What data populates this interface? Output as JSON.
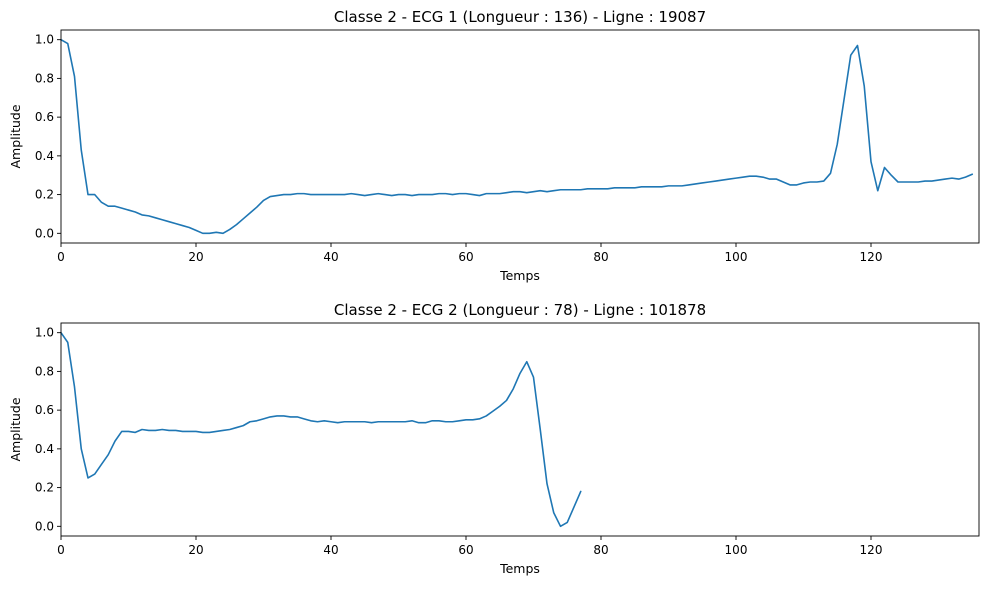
{
  "chart_data": [
    {
      "type": "line",
      "title": "Classe 2 - ECG 1 (Longueur : 136) - Ligne : 19087",
      "xlabel": "Temps",
      "ylabel": "Amplitude",
      "xlim": [
        0,
        136
      ],
      "ylim": [
        -0.05,
        1.05
      ],
      "xticks": [
        0,
        20,
        40,
        60,
        80,
        100,
        120
      ],
      "yticks": [
        0.0,
        0.2,
        0.4,
        0.6,
        0.8,
        1.0
      ],
      "xtick_labels": [
        "0",
        "20",
        "40",
        "60",
        "80",
        "100",
        "120"
      ],
      "ytick_labels": [
        "0.0",
        "0.2",
        "0.4",
        "0.6",
        "0.8",
        "1.0"
      ],
      "grid": false,
      "line_color": "#1f77b4",
      "series": [
        {
          "values": [
            1.0,
            0.98,
            0.81,
            0.43,
            0.2,
            0.2,
            0.16,
            0.14,
            0.14,
            0.13,
            0.12,
            0.11,
            0.095,
            0.09,
            0.08,
            0.07,
            0.06,
            0.05,
            0.04,
            0.03,
            0.015,
            0.0,
            0.0,
            0.005,
            0.0,
            0.02,
            0.045,
            0.075,
            0.105,
            0.135,
            0.17,
            0.19,
            0.195,
            0.2,
            0.2,
            0.205,
            0.205,
            0.2,
            0.2,
            0.2,
            0.2,
            0.2,
            0.2,
            0.205,
            0.2,
            0.195,
            0.2,
            0.205,
            0.2,
            0.195,
            0.2,
            0.2,
            0.195,
            0.2,
            0.2,
            0.2,
            0.205,
            0.205,
            0.2,
            0.205,
            0.205,
            0.2,
            0.195,
            0.205,
            0.205,
            0.205,
            0.21,
            0.215,
            0.215,
            0.21,
            0.215,
            0.22,
            0.215,
            0.22,
            0.225,
            0.225,
            0.225,
            0.225,
            0.23,
            0.23,
            0.23,
            0.23,
            0.235,
            0.235,
            0.235,
            0.235,
            0.24,
            0.24,
            0.24,
            0.24,
            0.245,
            0.245,
            0.245,
            0.25,
            0.255,
            0.26,
            0.265,
            0.27,
            0.275,
            0.28,
            0.285,
            0.29,
            0.295,
            0.295,
            0.29,
            0.28,
            0.28,
            0.265,
            0.25,
            0.25,
            0.26,
            0.265,
            0.265,
            0.27,
            0.31,
            0.46,
            0.69,
            0.92,
            0.97,
            0.76,
            0.37,
            0.22,
            0.34,
            0.3,
            0.265,
            0.265,
            0.265,
            0.265,
            0.27,
            0.27,
            0.275,
            0.28,
            0.285,
            0.28,
            0.29,
            0.305
          ]
        }
      ]
    },
    {
      "type": "line",
      "title": "Classe 2 - ECG 2 (Longueur : 78) - Ligne : 101878",
      "xlabel": "Temps",
      "ylabel": "Amplitude",
      "xlim": [
        0,
        136
      ],
      "ylim": [
        -0.05,
        1.05
      ],
      "xticks": [
        0,
        20,
        40,
        60,
        80,
        100,
        120
      ],
      "yticks": [
        0.0,
        0.2,
        0.4,
        0.6,
        0.8,
        1.0
      ],
      "xtick_labels": [
        "0",
        "20",
        "40",
        "60",
        "80",
        "100",
        "120"
      ],
      "ytick_labels": [
        "0.0",
        "0.2",
        "0.4",
        "0.6",
        "0.8",
        "1.0"
      ],
      "grid": false,
      "line_color": "#1f77b4",
      "series": [
        {
          "values": [
            1.0,
            0.95,
            0.72,
            0.4,
            0.25,
            0.27,
            0.32,
            0.37,
            0.44,
            0.49,
            0.49,
            0.485,
            0.5,
            0.495,
            0.495,
            0.5,
            0.495,
            0.495,
            0.49,
            0.49,
            0.49,
            0.485,
            0.485,
            0.49,
            0.495,
            0.5,
            0.51,
            0.52,
            0.54,
            0.545,
            0.555,
            0.565,
            0.57,
            0.57,
            0.565,
            0.565,
            0.555,
            0.545,
            0.54,
            0.545,
            0.54,
            0.535,
            0.54,
            0.54,
            0.54,
            0.54,
            0.535,
            0.54,
            0.54,
            0.54,
            0.54,
            0.54,
            0.545,
            0.535,
            0.535,
            0.545,
            0.545,
            0.54,
            0.54,
            0.545,
            0.55,
            0.55,
            0.555,
            0.57,
            0.595,
            0.62,
            0.65,
            0.71,
            0.79,
            0.85,
            0.77,
            0.5,
            0.22,
            0.07,
            0.0,
            0.02,
            0.1,
            0.18
          ]
        }
      ]
    }
  ]
}
